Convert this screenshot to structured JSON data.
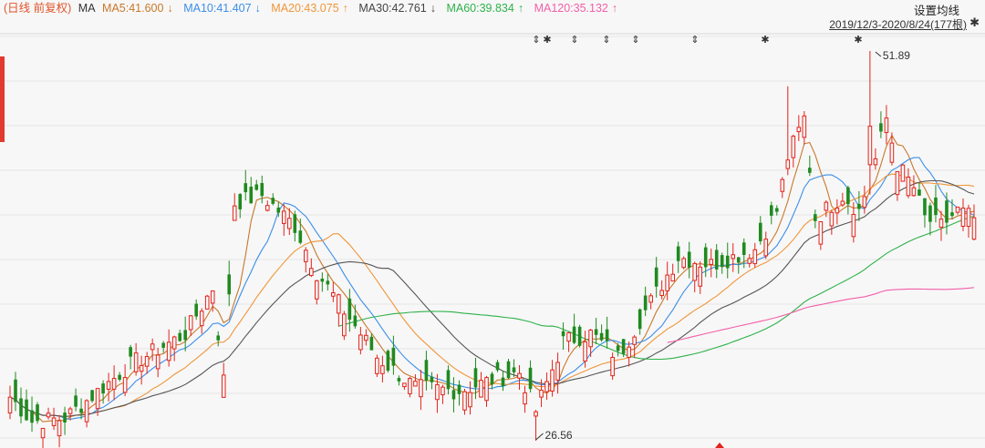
{
  "legend": {
    "title": "(日线 前复权)",
    "ma_label": "MA",
    "items": [
      {
        "label": "MA5:41.600",
        "arrow": "↓",
        "color": "#c8782a"
      },
      {
        "label": "MA10:41.407",
        "arrow": "↓",
        "color": "#3b8ee8"
      },
      {
        "label": "MA20:43.075",
        "arrow": "↑",
        "color": "#f0963a"
      },
      {
        "label": "MA30:42.761",
        "arrow": "↓",
        "color": "#555555"
      },
      {
        "label": "MA60:39.834",
        "arrow": "↑",
        "color": "#2fb24a"
      },
      {
        "label": "MA120:35.132",
        "arrow": "↑",
        "color": "#f25fa8"
      }
    ],
    "title_color": "#e2552a"
  },
  "header": {
    "settings_label": "设置均线",
    "range_label": "2019/12/3-2020/8/24(177根)",
    "pin_icon": "pin-icon"
  },
  "chart_data": {
    "type": "candlestick",
    "bars": 177,
    "date_range": [
      "2019/12/3",
      "2020/8/24"
    ],
    "price_range": [
      26.56,
      51.89
    ],
    "annotations": [
      {
        "text": "51.89",
        "kind": "high"
      },
      {
        "text": "26.56",
        "kind": "low"
      }
    ],
    "colors": {
      "up": "#e2231a",
      "down": "#1f8a1f"
    },
    "series_values": [
      {
        "name": "MA5",
        "value": 41.6
      },
      {
        "name": "MA10",
        "value": 41.407
      },
      {
        "name": "MA20",
        "value": 43.075
      },
      {
        "name": "MA30",
        "value": 42.761
      },
      {
        "name": "MA60",
        "value": 39.834
      },
      {
        "name": "MA120",
        "value": 35.132
      }
    ],
    "close_anchors": [
      {
        "t": 0,
        "v": 29.4
      },
      {
        "t": 4,
        "v": 27.8
      },
      {
        "t": 10,
        "v": 28.0
      },
      {
        "t": 22,
        "v": 31.5
      },
      {
        "t": 32,
        "v": 33.5
      },
      {
        "t": 37,
        "v": 36.5
      },
      {
        "t": 39,
        "v": 30.5
      },
      {
        "t": 41,
        "v": 42.0
      },
      {
        "t": 46,
        "v": 42.5
      },
      {
        "t": 52,
        "v": 40.5
      },
      {
        "t": 56,
        "v": 37.5
      },
      {
        "t": 62,
        "v": 34.5
      },
      {
        "t": 67,
        "v": 32.0
      },
      {
        "t": 74,
        "v": 30.0
      },
      {
        "t": 82,
        "v": 29.8
      },
      {
        "t": 88,
        "v": 30.5
      },
      {
        "t": 93,
        "v": 31.0
      },
      {
        "t": 96,
        "v": 28.5
      },
      {
        "t": 101,
        "v": 33.0
      },
      {
        "t": 106,
        "v": 33.5
      },
      {
        "t": 111,
        "v": 32.0
      },
      {
        "t": 116,
        "v": 35.0
      },
      {
        "t": 122,
        "v": 38.5
      },
      {
        "t": 128,
        "v": 38.0
      },
      {
        "t": 136,
        "v": 39.0
      },
      {
        "t": 140,
        "v": 41.5
      },
      {
        "t": 142,
        "v": 45.0
      },
      {
        "t": 145,
        "v": 47.5
      },
      {
        "t": 147,
        "v": 41.0
      },
      {
        "t": 152,
        "v": 42.5
      },
      {
        "t": 155,
        "v": 41.5
      },
      {
        "t": 157,
        "v": 43.5
      },
      {
        "t": 160,
        "v": 47.5
      },
      {
        "t": 162,
        "v": 44.5
      },
      {
        "t": 165,
        "v": 43.0
      },
      {
        "t": 167,
        "v": 41.0
      },
      {
        "t": 170,
        "v": 40.5
      },
      {
        "t": 173,
        "v": 41.5
      },
      {
        "t": 176,
        "v": 41.0
      }
    ],
    "ma_lines": [
      {
        "name": "MA5",
        "color": "#c8782a",
        "period": 5
      },
      {
        "name": "MA10",
        "color": "#3b8ee8",
        "period": 10
      },
      {
        "name": "MA20",
        "color": "#f0963a",
        "period": 20
      },
      {
        "name": "MA30",
        "color": "#555555",
        "period": 30
      },
      {
        "name": "MA60",
        "color": "#2fb24a",
        "period": 60
      },
      {
        "name": "MA120",
        "color": "#f25fa8",
        "period": 120
      }
    ],
    "event_markers": [
      "⇕",
      "✱",
      "⇕",
      "⇕",
      "⇕",
      "⇕",
      "✱",
      "✱"
    ],
    "grid": true
  }
}
